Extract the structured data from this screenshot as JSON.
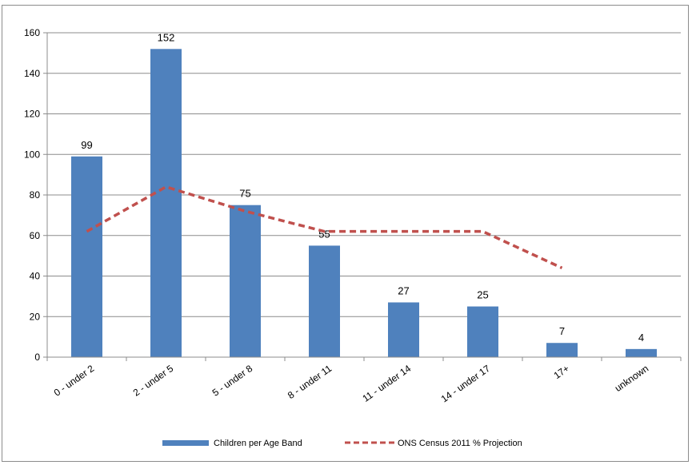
{
  "chart_data": {
    "type": "bar",
    "categories": [
      "0 - under 2",
      "2 - under 5",
      "5 - under 8",
      "8 - under 11",
      "11 - under 14",
      "14 - under 17",
      "17+",
      "unknown"
    ],
    "series": [
      {
        "name": "Children per Age Band",
        "kind": "bar",
        "values": [
          99,
          152,
          75,
          55,
          27,
          25,
          7,
          4
        ],
        "color": "#4f81bd"
      },
      {
        "name": "ONS Census 2011 % Projection",
        "kind": "line",
        "style": "dashed",
        "values": [
          62,
          84,
          72,
          62,
          62,
          62,
          44,
          null
        ],
        "color": "#c0504d"
      }
    ],
    "data_labels": [
      "99",
      "152",
      "75",
      "55",
      "27",
      "25",
      "7",
      "4"
    ],
    "ylim": [
      0,
      160
    ],
    "yticks": [
      0,
      20,
      40,
      60,
      80,
      100,
      120,
      140,
      160
    ],
    "grid": true,
    "legend": "bottom",
    "title": "",
    "xlabel": "",
    "ylabel": ""
  }
}
